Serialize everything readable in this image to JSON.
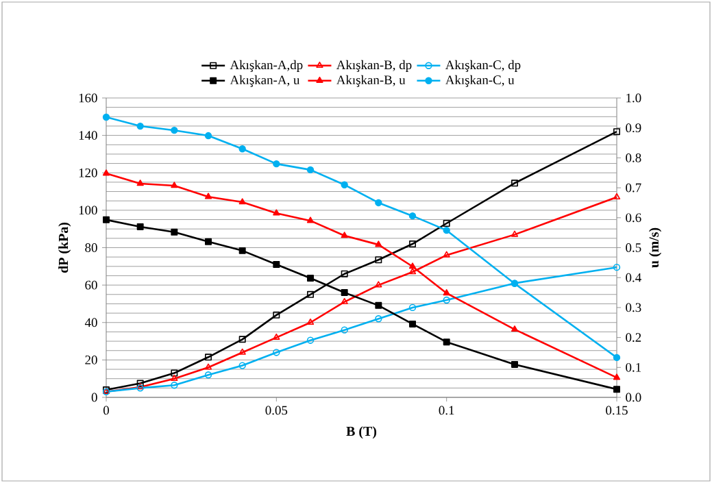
{
  "chart_data": {
    "type": "line",
    "xlabel": "B (T)",
    "ylabel": "dP (kPa)",
    "y2label": "u (m/s)",
    "x": [
      0,
      0.01,
      0.02,
      0.03,
      0.04,
      0.05,
      0.06,
      0.07,
      0.08,
      0.09,
      0.1,
      0.12,
      0.15
    ],
    "series": [
      {
        "name": "Akışkan-A,dp",
        "color": "#000000",
        "marker": "square",
        "values": [
          4,
          7.5,
          13,
          21.5,
          31,
          44,
          55,
          66,
          73.5,
          82,
          93,
          114.5,
          142
        ]
      },
      {
        "name": "Akışkan-B, dp",
        "color": "#ff0000",
        "marker": "triangle",
        "values": [
          3,
          5.5,
          10,
          16,
          24,
          32,
          40,
          51,
          60,
          67,
          76,
          87,
          107
        ]
      },
      {
        "name": "Akışkan-C, dp",
        "color": "#00b0f0",
        "marker": "circle",
        "values": [
          3,
          5,
          6.5,
          12,
          17,
          24,
          30.5,
          36,
          42,
          48,
          52,
          61,
          69.5
        ]
      },
      {
        "name": "Akışkan-A, u",
        "color": "#000000",
        "marker": "square",
        "axis": "y2",
        "values": [
          0.593,
          0.57,
          0.552,
          0.52,
          0.49,
          0.444,
          0.398,
          0.35,
          0.307,
          0.245,
          0.185,
          0.11,
          0.027
        ]
      },
      {
        "name": "Akışkan-B, u",
        "color": "#ff0000",
        "marker": "triangle",
        "axis": "y2",
        "values": [
          0.748,
          0.714,
          0.707,
          0.67,
          0.652,
          0.615,
          0.59,
          0.54,
          0.51,
          0.437,
          0.348,
          0.227,
          0.066
        ]
      },
      {
        "name": "Akışkan-C, u",
        "color": "#00b0f0",
        "marker": "circle",
        "axis": "y2",
        "values": [
          0.936,
          0.906,
          0.892,
          0.874,
          0.83,
          0.78,
          0.76,
          0.71,
          0.65,
          0.606,
          0.558,
          0.38,
          0.133
        ]
      }
    ],
    "xlim": [
      0,
      0.15
    ],
    "xticks": [
      0,
      0.05,
      0.1,
      0.15
    ],
    "ylim": [
      0,
      160
    ],
    "yticks": [
      0,
      20,
      40,
      60,
      80,
      100,
      120,
      140,
      160
    ],
    "y2lim": [
      0,
      1
    ],
    "y2ticks": [
      {
        "value": 0,
        "label": "0.0"
      },
      0.1,
      0.2,
      0.3,
      0.4,
      0.5,
      0.6,
      0.7,
      0.8,
      0.9,
      {
        "value": 1,
        "label": "1.0"
      }
    ],
    "grid": "y",
    "legend": "top",
    "line_style": "solid"
  }
}
